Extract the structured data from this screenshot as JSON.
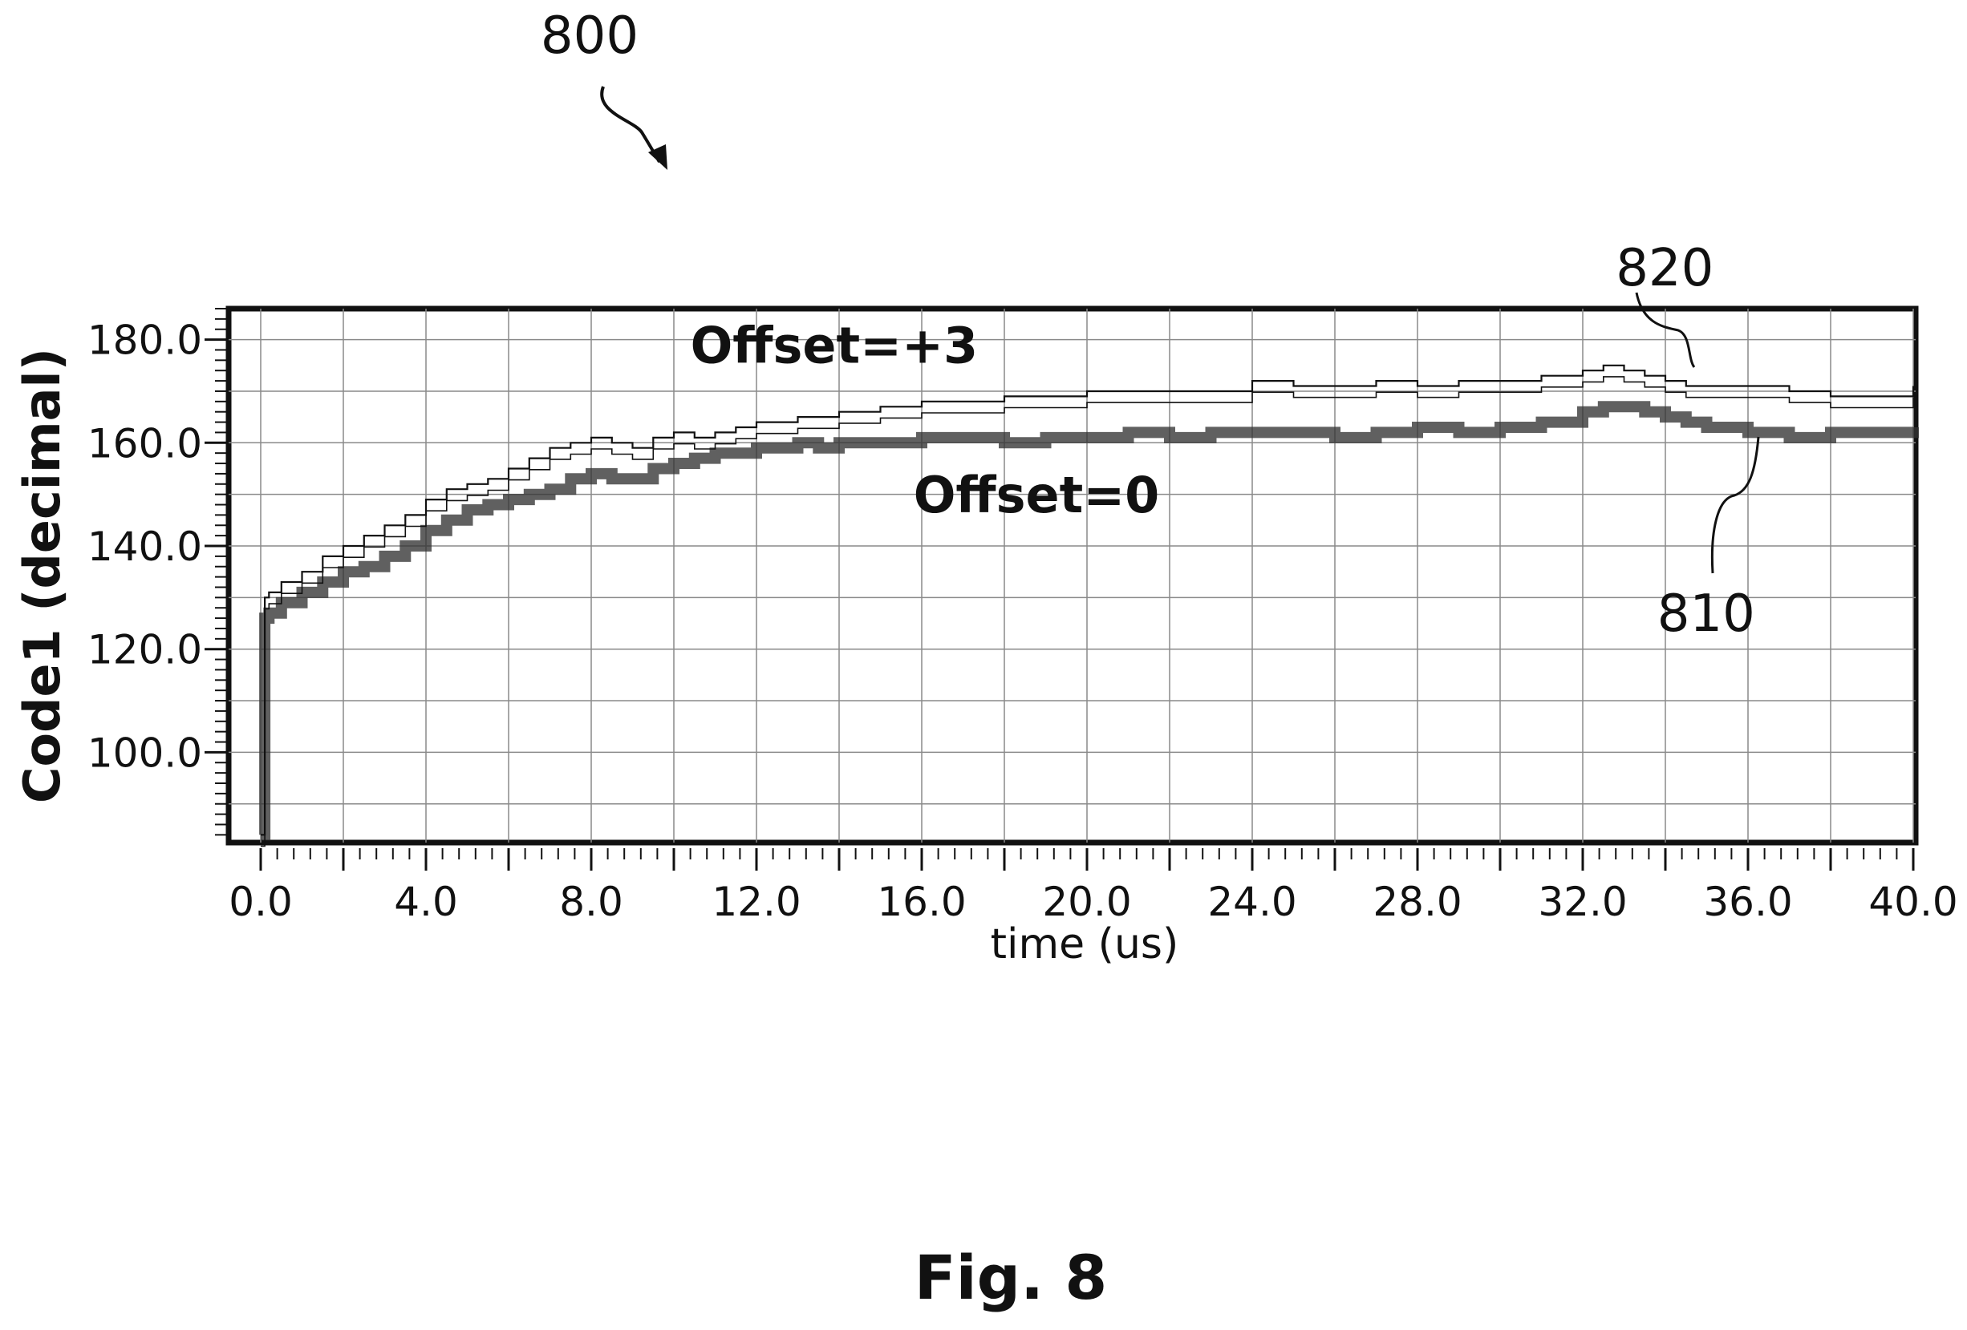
{
  "figure": {
    "reference_number": "800",
    "caption": "Fig. 8"
  },
  "chart_data": {
    "type": "line",
    "title": "",
    "xlabel": "time (us)",
    "ylabel": "Code1 (decimal)",
    "xlim": [
      0,
      40
    ],
    "ylim": [
      82.5,
      186
    ],
    "x_ticks": [
      0,
      4,
      8,
      12,
      16,
      20,
      24,
      28,
      32,
      36,
      40
    ],
    "x_tick_labels": [
      "0.0",
      "4.0",
      "8.0",
      "12.0",
      "16.0",
      "20.0",
      "24.0",
      "28.0",
      "32.0",
      "36.0",
      "40.0"
    ],
    "y_ticks": [
      100,
      120,
      140,
      160,
      180
    ],
    "y_tick_labels": [
      "100.0",
      "120.0",
      "140.0",
      "160.0",
      "180.0"
    ],
    "grid": true,
    "series": [
      {
        "name": "Offset=0",
        "reference": "810",
        "color": "#333333",
        "x": [
          0,
          0.05,
          0.1,
          0.15,
          0.2,
          0.5,
          1,
          1.5,
          2,
          2.5,
          3,
          3.5,
          4,
          4.5,
          5,
          5.5,
          6,
          6.5,
          7,
          7.5,
          8,
          8.5,
          9,
          9.5,
          10,
          10.5,
          11,
          11.5,
          12,
          12.5,
          13,
          13.5,
          14,
          15,
          16,
          17,
          18,
          19,
          20,
          21,
          22,
          23,
          24,
          25,
          26,
          27,
          28,
          29,
          30,
          31,
          32,
          32.5,
          33,
          33.5,
          34,
          34.5,
          35,
          36,
          37,
          38,
          39,
          40
        ],
        "y": [
          84,
          84,
          126,
          126,
          127,
          129,
          131,
          133,
          135,
          136,
          138,
          140,
          143,
          145,
          147,
          148,
          149,
          150,
          151,
          153,
          154,
          153,
          153,
          155,
          156,
          157,
          158,
          158,
          159,
          159,
          160,
          159,
          160,
          160,
          161,
          161,
          160,
          161,
          161,
          162,
          161,
          162,
          162,
          162,
          161,
          162,
          163,
          162,
          163,
          164,
          166,
          167,
          167,
          166,
          165,
          164,
          163,
          162,
          161,
          162,
          162,
          163
        ]
      },
      {
        "name": "Offset=+3",
        "reference": "820",
        "color": "#111111",
        "x": [
          0,
          0.05,
          0.1,
          0.15,
          0.2,
          0.5,
          1,
          1.5,
          2,
          2.5,
          3,
          3.5,
          4,
          4.5,
          5,
          5.5,
          6,
          6.5,
          7,
          7.5,
          8,
          8.5,
          9,
          9.5,
          10,
          10.5,
          11,
          11.5,
          12,
          12.5,
          13,
          13.5,
          14,
          15,
          16,
          17,
          18,
          19,
          20,
          21,
          22,
          23,
          24,
          25,
          26,
          27,
          28,
          29,
          30,
          31,
          32,
          32.5,
          33,
          33.5,
          34,
          34.5,
          35,
          36,
          37,
          38,
          39,
          40
        ],
        "y": [
          84,
          84,
          130,
          130,
          131,
          133,
          135,
          138,
          140,
          142,
          144,
          146,
          149,
          151,
          152,
          153,
          155,
          157,
          159,
          160,
          161,
          160,
          159,
          161,
          162,
          161,
          162,
          163,
          164,
          164,
          165,
          165,
          166,
          167,
          168,
          168,
          169,
          169,
          170,
          170,
          170,
          170,
          172,
          171,
          171,
          172,
          171,
          172,
          172,
          173,
          174,
          175,
          174,
          173,
          172,
          171,
          171,
          171,
          170,
          169,
          169,
          171
        ]
      }
    ],
    "annotations": [
      {
        "text": "Offset=+3",
        "x": 10.4,
        "y": 175.5
      },
      {
        "text": "Offset=0",
        "x": 15.8,
        "y": 146.5
      },
      {
        "text": "820",
        "x": 32.8,
        "y": 190.5
      },
      {
        "text": "810",
        "x": 33.8,
        "y": 123.5
      }
    ]
  }
}
